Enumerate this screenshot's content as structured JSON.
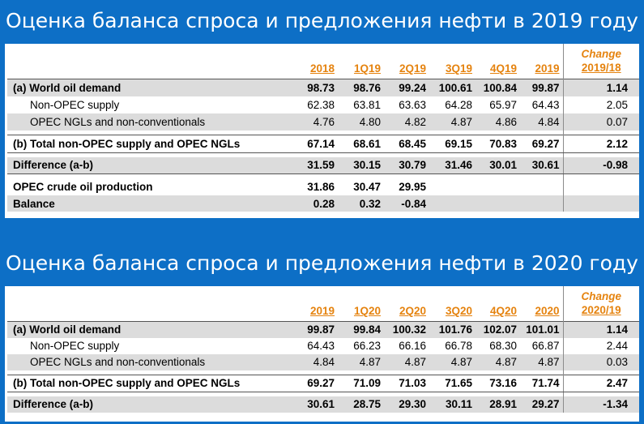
{
  "slide1": {
    "title": "Оценка баланса спроса и предложения нефти в 2019 году",
    "headers": [
      "2018",
      "1Q19",
      "2Q19",
      "3Q19",
      "4Q19",
      "2019"
    ],
    "change_label": "Change",
    "change_period": "2019/18",
    "rows": [
      {
        "label": "(a) World oil demand",
        "values": [
          "98.73",
          "98.76",
          "99.24",
          "100.61",
          "100.84",
          "99.87"
        ],
        "change": "1.14"
      },
      {
        "label": "Non-OPEC supply",
        "values": [
          "62.38",
          "63.81",
          "63.63",
          "64.28",
          "65.97",
          "64.43"
        ],
        "change": "2.05"
      },
      {
        "label": "OPEC NGLs and non-conventionals",
        "values": [
          "4.76",
          "4.80",
          "4.82",
          "4.87",
          "4.86",
          "4.84"
        ],
        "change": "0.07"
      },
      {
        "label": "(b) Total non-OPEC supply and OPEC NGLs",
        "values": [
          "67.14",
          "68.61",
          "68.45",
          "69.15",
          "70.83",
          "69.27"
        ],
        "change": "2.12"
      },
      {
        "label": "Difference (a-b)",
        "values": [
          "31.59",
          "30.15",
          "30.79",
          "31.46",
          "30.01",
          "30.61"
        ],
        "change": "-0.98"
      },
      {
        "label": "OPEC crude oil production",
        "values": [
          "31.86",
          "30.47",
          "29.95"
        ]
      },
      {
        "label": "Balance",
        "values": [
          "0.28",
          "0.32",
          "-0.84"
        ]
      }
    ]
  },
  "slide2": {
    "title": "Оценка баланса спроса и предложения нефти в 2020 году",
    "headers": [
      "2019",
      "1Q20",
      "2Q20",
      "3Q20",
      "4Q20",
      "2020"
    ],
    "change_label": "Change",
    "change_period": "2020/19",
    "rows": [
      {
        "label": "(a) World oil demand",
        "values": [
          "99.87",
          "99.84",
          "100.32",
          "101.76",
          "102.07",
          "101.01"
        ],
        "change": "1.14"
      },
      {
        "label": "Non-OPEC supply",
        "values": [
          "64.43",
          "66.23",
          "66.16",
          "66.78",
          "68.30",
          "66.87"
        ],
        "change": "2.44"
      },
      {
        "label": "OPEC NGLs and non-conventionals",
        "values": [
          "4.84",
          "4.87",
          "4.87",
          "4.87",
          "4.87",
          "4.87"
        ],
        "change": "0.03"
      },
      {
        "label": "(b) Total non-OPEC supply and OPEC NGLs",
        "values": [
          "69.27",
          "71.09",
          "71.03",
          "71.65",
          "73.16",
          "71.74"
        ],
        "change": "2.47"
      },
      {
        "label": "Difference (a-b)",
        "values": [
          "30.61",
          "28.75",
          "29.30",
          "30.11",
          "28.91",
          "29.27"
        ],
        "change": "-1.34"
      }
    ]
  },
  "colors": {
    "background": "#0d6fc6",
    "header_accent": "#e5830f",
    "row_shade": "#dcdcdc",
    "title_text": "#ffffff"
  }
}
